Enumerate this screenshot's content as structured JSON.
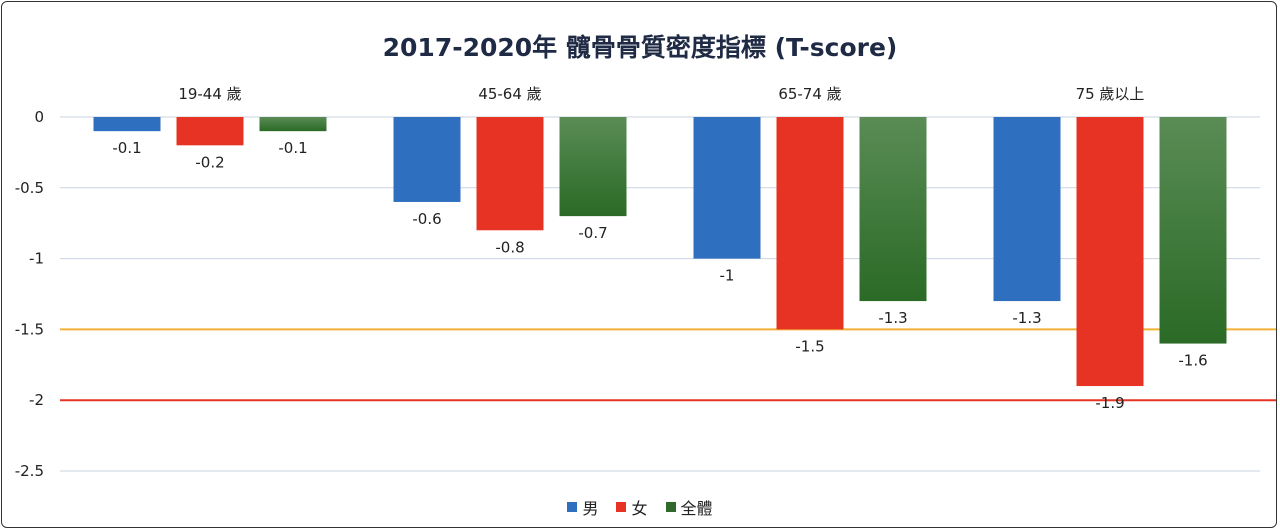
{
  "chart_data": {
    "type": "bar",
    "title": "2017-2020年 髖骨骨質密度指標 (T-score)",
    "categories": [
      "19-44 歲",
      "45-64 歲",
      "65-74 歲",
      "75 歲以上"
    ],
    "series": [
      {
        "name": "男",
        "values": [
          -0.1,
          -0.6,
          -1,
          -1.3
        ],
        "color": "#2f6fbf"
      },
      {
        "name": "女",
        "values": [
          -0.2,
          -0.8,
          -1.5,
          -1.9
        ],
        "color": "#e63323"
      },
      {
        "name": "全體",
        "values": [
          -0.1,
          -0.7,
          -1.3,
          -1.6
        ],
        "color": "#2f6a2a"
      }
    ],
    "ylim": [
      -2.5,
      0
    ],
    "yticks": [
      "0",
      "-0.5",
      "-1",
      "-1.5",
      "-2",
      "-2.5"
    ],
    "reference_lines": [
      {
        "value": -1.5,
        "color": "#f2b134"
      },
      {
        "value": -2,
        "color": "#e63323"
      }
    ],
    "data_labels": [
      [
        "-0.1",
        "-0.2",
        "-0.1"
      ],
      [
        "-0.6",
        "-0.8",
        "-0.7"
      ],
      [
        "-1",
        "-1.5",
        "-1.3"
      ],
      [
        "-1.3",
        "-1.9",
        "-1.6"
      ]
    ],
    "grid": true,
    "legend_position": "bottom"
  }
}
